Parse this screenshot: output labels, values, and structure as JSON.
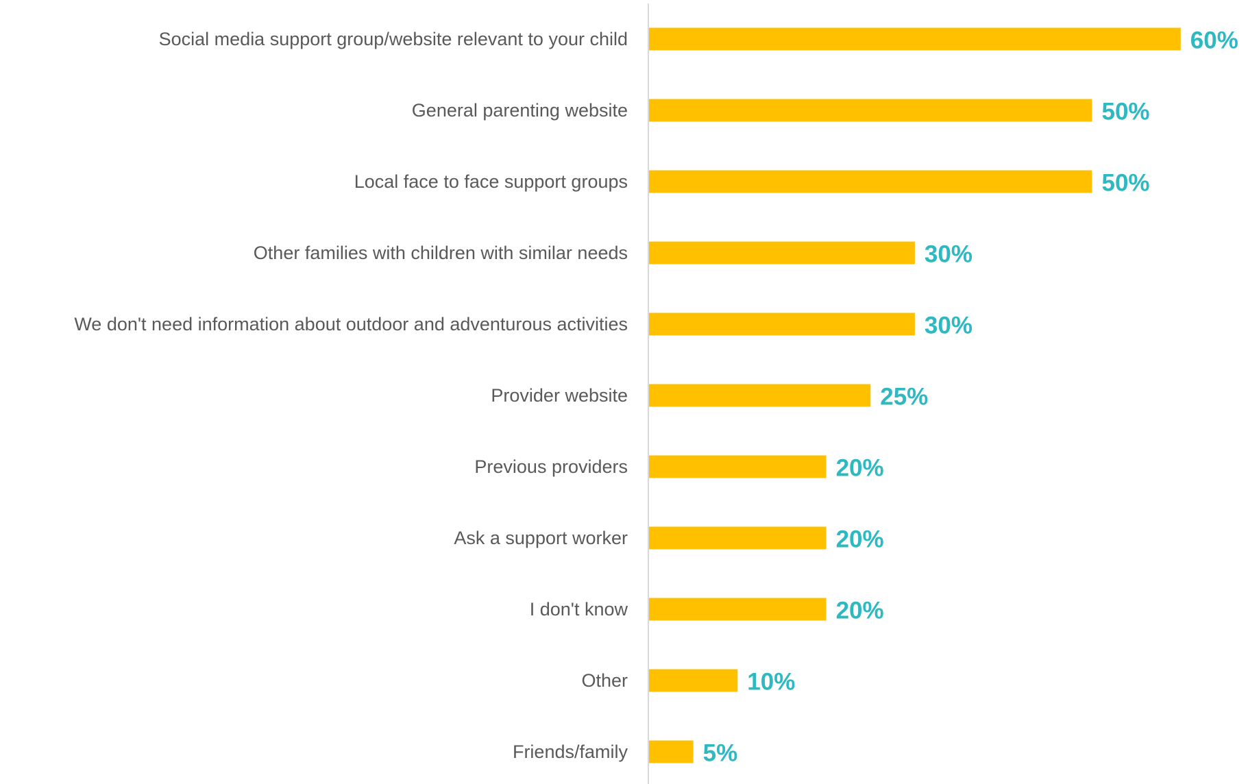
{
  "chart_data": {
    "type": "bar",
    "orientation": "horizontal",
    "categories": [
      "Social media support group/website relevant to your child",
      "General parenting website",
      "Local face to face support groups",
      "Other families with children with similar needs",
      "We don't need information about outdoor and adventurous activities",
      "Provider website",
      "Previous providers",
      "Ask a support worker",
      "I don't know",
      "Other",
      "Friends/family"
    ],
    "values": [
      60,
      50,
      50,
      30,
      30,
      25,
      20,
      20,
      20,
      10,
      5
    ],
    "value_labels": [
      "60%",
      "50%",
      "50%",
      "30%",
      "30%",
      "25%",
      "20%",
      "20%",
      "20%",
      "10%",
      "5%"
    ],
    "unit": "%",
    "title": "",
    "xlabel": "",
    "ylabel": "",
    "xlim": [
      0,
      60
    ],
    "grid": false,
    "legend": "none",
    "colors": {
      "bar": "#FFC000",
      "value_label": "#2EB8C2",
      "category_label": "#595959",
      "axis": "#D9D9D9"
    }
  }
}
